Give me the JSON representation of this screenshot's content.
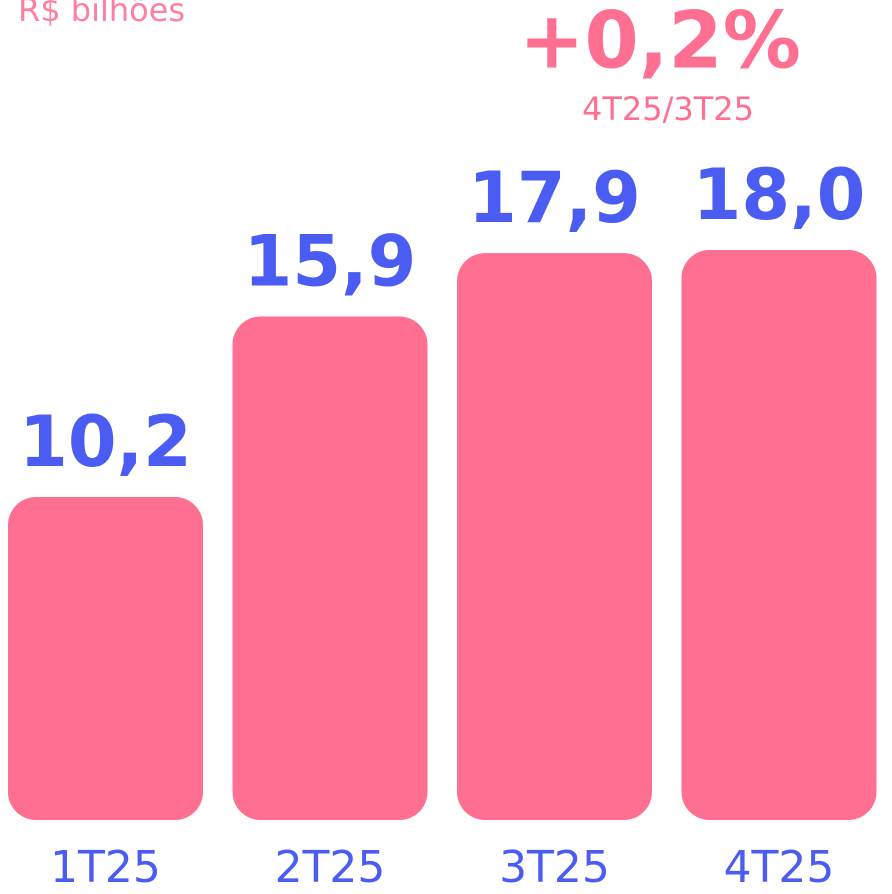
{
  "chart_data": {
    "type": "bar",
    "title": "R$ bilhões",
    "annotations": [
      "+0,2%",
      "4T25/3T25"
    ],
    "categories": [
      "1T25",
      "2T25",
      "3T25",
      "4T25"
    ],
    "values": [
      10.2,
      15.9,
      17.9,
      18.0
    ],
    "value_labels": [
      "10,2",
      "15,9",
      "17,9",
      "18,0"
    ],
    "color": "#ff6f91",
    "label_color": "#4a5cf2"
  }
}
